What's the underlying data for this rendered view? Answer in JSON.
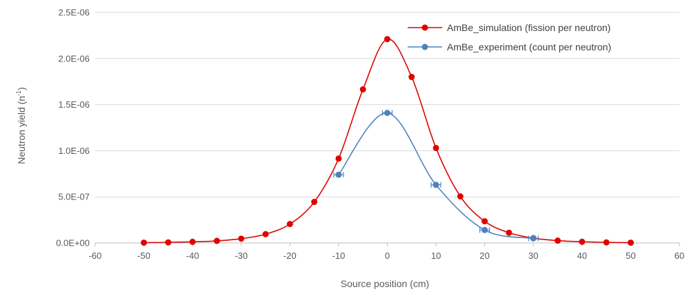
{
  "chart_data": {
    "type": "scatter",
    "xlabel": "Source position (cm)",
    "ylabel_main": "Neutron yield (n",
    "ylabel_sup": "-1",
    "ylabel_tail": ")",
    "xlim": [
      -60,
      60
    ],
    "ylim": [
      0,
      2.5e-06
    ],
    "x_ticks": [
      -60,
      -50,
      -40,
      -30,
      -20,
      -10,
      0,
      10,
      20,
      30,
      40,
      50,
      60
    ],
    "x_tick_labels": [
      "-60",
      "-50",
      "-40",
      "-30",
      "-20",
      "-10",
      "0",
      "10",
      "20",
      "30",
      "40",
      "50",
      "60"
    ],
    "y_ticks": [
      0,
      5e-07,
      1e-06,
      1.5e-06,
      2e-06,
      2.5e-06
    ],
    "y_tick_labels": [
      "0.0E+00",
      "5.0E-07",
      "1.0E-06",
      "1.5E-06",
      "2.0E-06",
      "2.5E-06"
    ],
    "grid": "horizontal",
    "legend": "top-right",
    "series": [
      {
        "name": "AmBe_simulation (fission per neutron)",
        "color": "#e00000",
        "marker": "circle",
        "x": [
          -50,
          -45,
          -40,
          -35,
          -30,
          -25,
          -20,
          -15,
          -10,
          -5,
          0,
          5,
          10,
          15,
          20,
          25,
          30,
          35,
          40,
          45,
          50
        ],
        "y": [
          3e-09,
          6e-09,
          1.2e-08,
          2.2e-08,
          4.6e-08,
          9.5e-08,
          2.05e-07,
          4.45e-07,
          9.15e-07,
          1.665e-06,
          2.21e-06,
          1.8e-06,
          1.03e-06,
          5.05e-07,
          2.35e-07,
          1.1e-07,
          5.2e-08,
          2.5e-08,
          1.3e-08,
          6e-09,
          3e-09
        ]
      },
      {
        "name": "AmBe_experiment (count per neutron)",
        "color": "#4f81bd",
        "marker": "circle",
        "errorbars": true,
        "x": [
          -10,
          0,
          10,
          20,
          30
        ],
        "y": [
          7.4e-07,
          1.41e-06,
          6.3e-07,
          1.4e-07,
          5e-08
        ]
      }
    ]
  }
}
